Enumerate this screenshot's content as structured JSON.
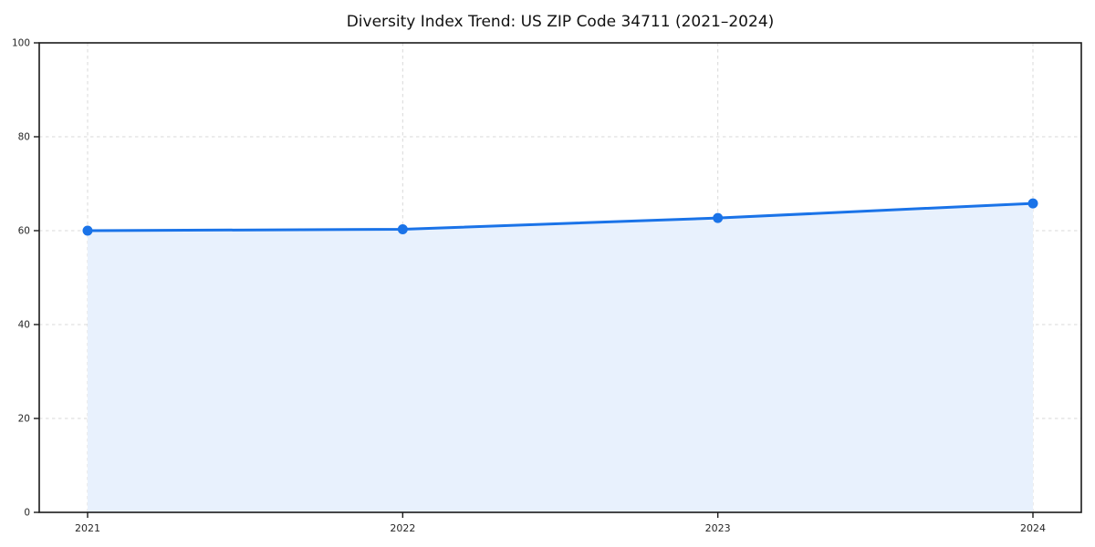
{
  "chart_data": {
    "type": "area",
    "title": "Diversity Index Trend: US ZIP Code 34711 (2021–2024)",
    "x": [
      "2021",
      "2022",
      "2023",
      "2024"
    ],
    "series": [
      {
        "name": "Diversity Index",
        "values": [
          60.0,
          60.3,
          62.7,
          65.8
        ]
      }
    ],
    "xlabel": "",
    "ylabel": "",
    "ylim": [
      0,
      100
    ],
    "yticks": [
      0,
      20,
      40,
      60,
      80,
      100
    ],
    "grid": true,
    "grid_style": "dashed",
    "legend": false,
    "colors": {
      "line": "#1a73e8",
      "fill": "#e8f1fd",
      "grid": "#d9d9d9",
      "spine": "#1a1a1a",
      "tick_label": "#262626",
      "background": "#ffffff"
    },
    "marker": "circle"
  }
}
